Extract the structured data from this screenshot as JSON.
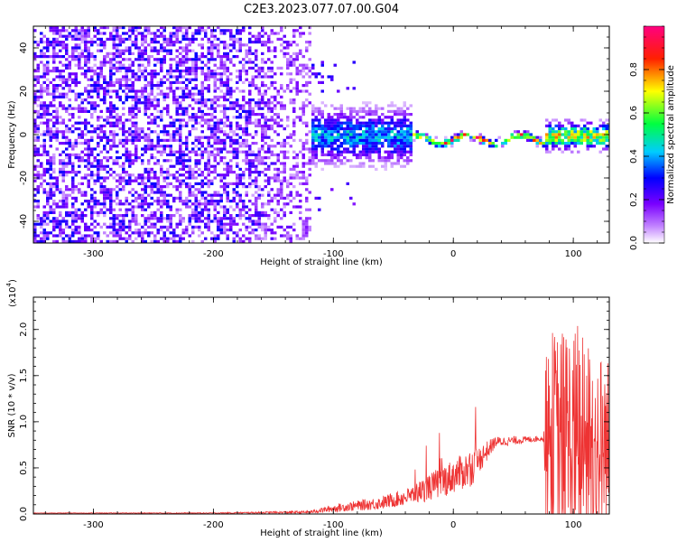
{
  "figure": {
    "title": "C2E3.2023.077.07.00.G04"
  },
  "colorbar": {
    "label": "Normalized spectral amplitude",
    "ticks": [
      "0.0",
      "0.2",
      "0.4",
      "0.6",
      "0.8"
    ],
    "tick_values": [
      0.0,
      0.2,
      0.4,
      0.6,
      0.8
    ],
    "range": [
      0,
      1
    ],
    "colormap": [
      "#ffffff",
      "#7a00ff",
      "#0000ff",
      "#00ffff",
      "#00ff00",
      "#ffff00",
      "#ff0000",
      "#ff0080"
    ]
  },
  "chart_data": [
    {
      "type": "heatmap",
      "xlabel": "Height of straight line (km)",
      "ylabel": "Frequency (Hz)",
      "xlim": [
        -350,
        130
      ],
      "ylim": [
        -50,
        50
      ],
      "x_ticks": [
        "-300",
        "-200",
        "-100",
        "0",
        "100"
      ],
      "x_tick_values": [
        -300,
        -200,
        -100,
        0,
        100
      ],
      "y_ticks": [
        "-40",
        "-20",
        "0",
        "20",
        "40"
      ],
      "y_tick_values": [
        -40,
        -20,
        0,
        20,
        40
      ],
      "regions": [
        {
          "x": [
            -350,
            -120
          ],
          "description_level": 0.25,
          "freq_spread": 50
        },
        {
          "x": [
            -120,
            -35
          ],
          "description_level": 0.45,
          "freq_spread": 20
        },
        {
          "x": [
            -35,
            75
          ],
          "description_level": 0.9,
          "freq_spread": 3
        },
        {
          "x": [
            75,
            130
          ],
          "description_level": 0.75,
          "freq_spread": 10
        }
      ]
    },
    {
      "type": "line",
      "xlabel": "Height of straight line (km)",
      "ylabel": "SNR (10 * v/v)",
      "scale_label": "(x10",
      "scale_exp": "4",
      "scale_close": ")",
      "xlim": [
        -350,
        130
      ],
      "ylim": [
        0,
        2.35
      ],
      "x_ticks": [
        "-300",
        "-200",
        "-100",
        "0",
        "100"
      ],
      "x_tick_values": [
        -300,
        -200,
        -100,
        0,
        100
      ],
      "y_ticks": [
        "0.0",
        "0.5",
        "1.0",
        "1.5",
        "2.0"
      ],
      "y_tick_values": [
        0.0,
        0.5,
        1.0,
        1.5,
        2.0
      ],
      "series": [
        {
          "color": "#ee3333",
          "envelope": [
            {
              "x": -350,
              "base": 0.01,
              "noise": 0.005
            },
            {
              "x": -200,
              "base": 0.01,
              "noise": 0.01
            },
            {
              "x": -160,
              "base": 0.015,
              "noise": 0.02
            },
            {
              "x": -120,
              "base": 0.02,
              "noise": 0.03
            },
            {
              "x": -100,
              "base": 0.06,
              "noise": 0.08
            },
            {
              "x": -60,
              "base": 0.12,
              "noise": 0.14
            },
            {
              "x": -35,
              "base": 0.2,
              "noise": 0.2
            },
            {
              "x": -10,
              "base": 0.35,
              "noise": 0.35
            },
            {
              "x": 15,
              "base": 0.5,
              "noise": 0.4
            },
            {
              "x": 35,
              "base": 0.78,
              "noise": 0.12
            },
            {
              "x": 75,
              "base": 0.82,
              "noise": 0.05
            },
            {
              "x": 78,
              "base": 0.8,
              "noise": 1.2
            },
            {
              "x": 100,
              "base": 0.75,
              "noise": 1.3
            },
            {
              "x": 130,
              "base": 0.7,
              "noise": 1.0
            }
          ]
        }
      ]
    }
  ]
}
